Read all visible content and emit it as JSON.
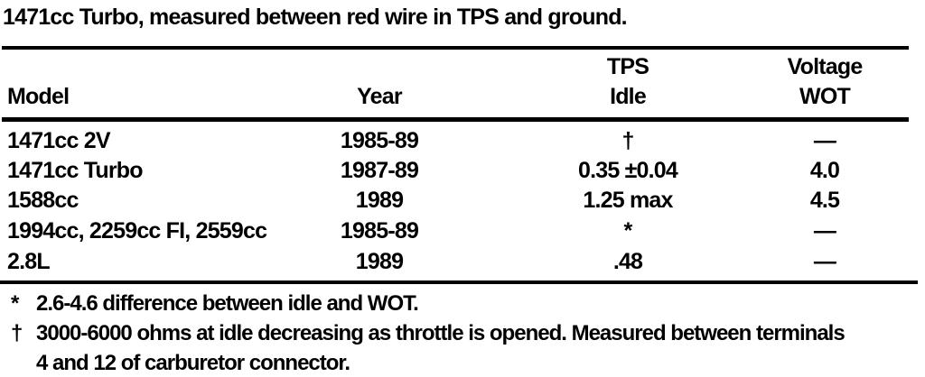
{
  "intro": "1471cc Turbo, measured between red wire in TPS and ground.",
  "table": {
    "headers": {
      "model": "Model",
      "year": "Year",
      "idle_top": "TPS",
      "idle_bottom": "Idle",
      "wot_top": "Voltage",
      "wot_bottom": "WOT"
    },
    "rows": [
      {
        "model": "1471cc 2V",
        "year": "1985-89",
        "tps_idle": "†",
        "voltage_wot": "—"
      },
      {
        "model": "1471cc Turbo",
        "year": "1987-89",
        "tps_idle": "0.35 ±0.04",
        "voltage_wot": "4.0"
      },
      {
        "model": "1588cc",
        "year": "1989",
        "tps_idle": "1.25 max",
        "voltage_wot": "4.5"
      },
      {
        "model": "1994cc, 2259cc FI, 2559cc",
        "year": "1985-89",
        "tps_idle": "*",
        "voltage_wot": "—"
      },
      {
        "model": "2.8L",
        "year": "1989",
        "tps_idle": ".48",
        "voltage_wot": "—"
      }
    ]
  },
  "footnotes": [
    {
      "marker": "*",
      "lines": [
        "2.6-4.6 difference between idle and WOT."
      ]
    },
    {
      "marker": "†",
      "lines": [
        "3000-6000 ohms at idle decreasing as throttle is opened. Measured between terminals",
        "4 and 12 of carburetor connector."
      ]
    }
  ],
  "colors": {
    "text": "#000000",
    "background": "#ffffff"
  }
}
